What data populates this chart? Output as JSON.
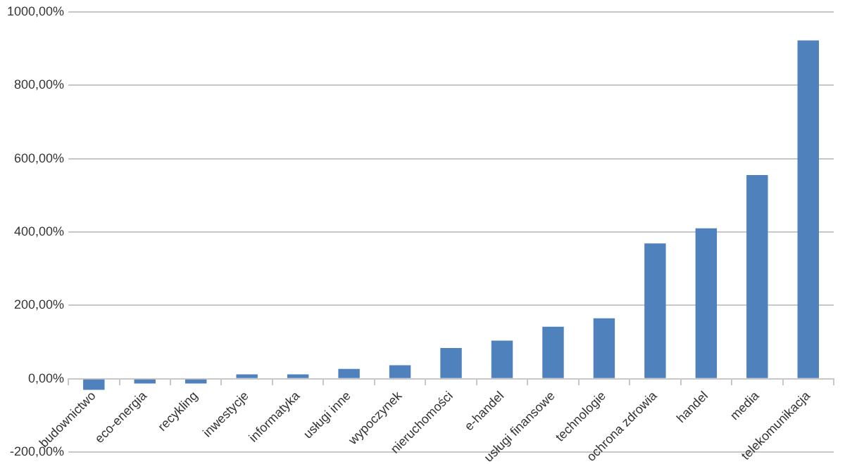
{
  "chart_data": {
    "type": "bar",
    "categories": [
      "budownictwo",
      "eco-energia",
      "recykling",
      "inwestycje",
      "informatyka",
      "usługi inne",
      "wypoczynek",
      "nieruchomości",
      "e-handel",
      "usługi finansowe",
      "technologie",
      "ochrona zdrowia",
      "handel",
      "media",
      "telekomunikacja"
    ],
    "values": [
      -30,
      -13,
      -13,
      12,
      12,
      27,
      37,
      84,
      104,
      142,
      165,
      369,
      410,
      555,
      922
    ],
    "color": "#4f81bd",
    "ylim": [
      -200,
      1000
    ],
    "yticks": [
      {
        "value": -200,
        "label": "-200,00%"
      },
      {
        "value": 0,
        "label": "0,00%"
      },
      {
        "value": 200,
        "label": "200,00%"
      },
      {
        "value": 400,
        "label": "400,00%"
      },
      {
        "value": 600,
        "label": "600,00%"
      },
      {
        "value": 800,
        "label": "800,00%"
      },
      {
        "value": 1000,
        "label": "1000,00%"
      }
    ],
    "grid": "y"
  }
}
